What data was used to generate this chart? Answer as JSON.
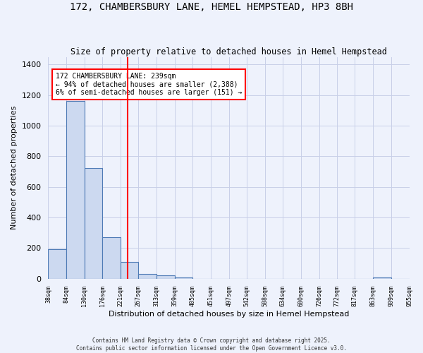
{
  "title": "172, CHAMBERSBURY LANE, HEMEL HEMPSTEAD, HP3 8BH",
  "subtitle": "Size of property relative to detached houses in Hemel Hempstead",
  "xlabel": "Distribution of detached houses by size in Hemel Hempstead",
  "ylabel": "Number of detached properties",
  "bar_edges": [
    38,
    84,
    130,
    176,
    221,
    267,
    313,
    359,
    405,
    451,
    497,
    542,
    588,
    634,
    680,
    726,
    772,
    817,
    863,
    909,
    955
  ],
  "bar_heights": [
    193,
    1163,
    724,
    270,
    110,
    33,
    22,
    10,
    0,
    0,
    0,
    0,
    0,
    0,
    0,
    0,
    0,
    0,
    10,
    0
  ],
  "bar_color": "#ccd9f0",
  "bar_edge_color": "#4d7ab5",
  "vline_x": 239,
  "vline_color": "red",
  "annotation_text": "172 CHAMBERSBURY LANE: 239sqm\n← 94% of detached houses are smaller (2,388)\n6% of semi-detached houses are larger (151) →",
  "annotation_box_color": "white",
  "annotation_box_edge_color": "red",
  "ylim": [
    0,
    1450
  ],
  "yticks": [
    0,
    200,
    400,
    600,
    800,
    1000,
    1200,
    1400
  ],
  "tick_labels": [
    "38sqm",
    "84sqm",
    "130sqm",
    "176sqm",
    "221sqm",
    "267sqm",
    "313sqm",
    "359sqm",
    "405sqm",
    "451sqm",
    "497sqm",
    "542sqm",
    "588sqm",
    "634sqm",
    "680sqm",
    "726sqm",
    "772sqm",
    "817sqm",
    "863sqm",
    "909sqm",
    "955sqm"
  ],
  "footer1": "Contains HM Land Registry data © Crown copyright and database right 2025.",
  "footer2": "Contains public sector information licensed under the Open Government Licence v3.0.",
  "bg_color": "#eef2fc",
  "grid_color": "#c8cfe8"
}
